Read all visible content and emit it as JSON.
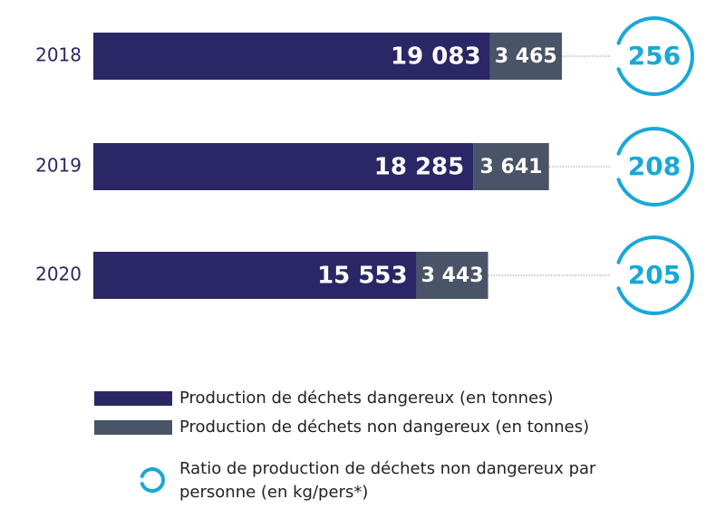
{
  "chart_data": {
    "type": "bar",
    "orientation": "horizontal",
    "stacked": true,
    "categories": [
      "2018",
      "2019",
      "2020"
    ],
    "series": [
      {
        "name": "Production de déchets dangereux (en tonnes)",
        "color": "#2b2766",
        "values": [
          19083,
          18285,
          15553
        ],
        "value_labels": [
          "19 083",
          "18 285",
          "15 553"
        ]
      },
      {
        "name": "Production de déchets non dangereux (en tonnes)",
        "color": "#4a5468",
        "values": [
          3465,
          3641,
          3443
        ],
        "value_labels": [
          "3 465",
          "3 641",
          "3 443"
        ]
      },
      {
        "name": "Ratio de production de déchets non dangereux par personne (en kg/pers*)",
        "color": "#17a8d8",
        "values": [
          256,
          208,
          205
        ]
      }
    ]
  }
}
